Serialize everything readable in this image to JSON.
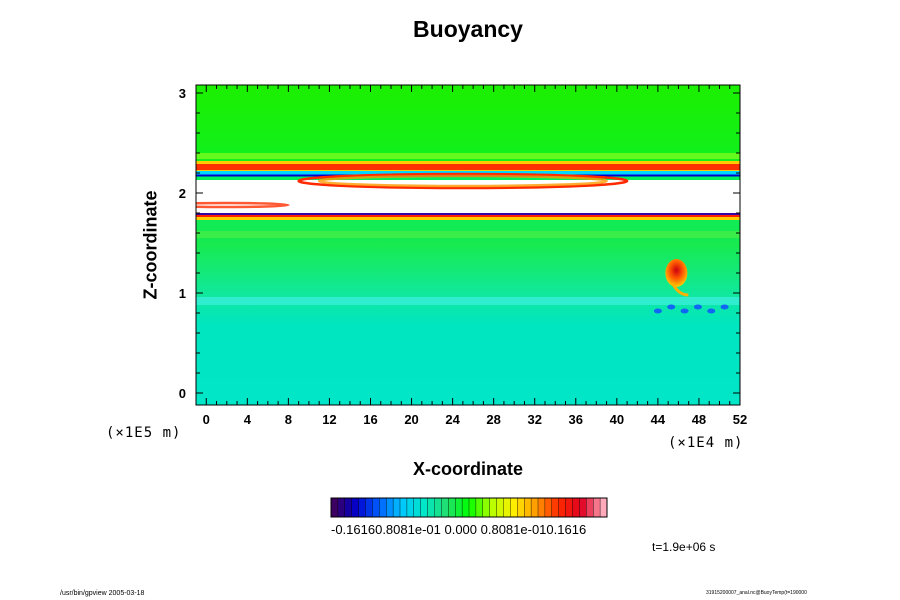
{
  "chart_data": {
    "type": "heatmap",
    "title": "Buoyancy",
    "xlabel": "X-coordinate",
    "ylabel": "Z-coordinate",
    "x_unit": "(×1E4 m)",
    "y_unit": "(×1E5 m)",
    "xlim": [
      -1,
      52
    ],
    "ylim": [
      -0.12,
      3.08
    ],
    "x_ticks": [
      "0",
      "4",
      "8",
      "12",
      "16",
      "20",
      "24",
      "28",
      "32",
      "36",
      "40",
      "44",
      "48",
      "52"
    ],
    "y_ticks": [
      "0",
      "1",
      "2",
      "3"
    ],
    "colorbar": {
      "range": [
        -0.1616,
        0.1616
      ],
      "labels_text": "-0.16160.8081e-01 0.000 0.8081e-010.1616",
      "colors": [
        "#3c0060",
        "#0000cc",
        "#0060ff",
        "#00c8ff",
        "#00e6c8",
        "#20e070",
        "#00ff00",
        "#b4ff00",
        "#ffee00",
        "#ff9900",
        "#ff2a00",
        "#e00020",
        "#ffaabb"
      ]
    },
    "features": [
      {
        "name": "upper green layer",
        "z_range": [
          2.35,
          3.08
        ],
        "value": 0.0
      },
      {
        "name": "upper red band",
        "z_range": [
          2.22,
          2.32
        ],
        "value": 0.12
      },
      {
        "name": "blue line",
        "z_range": [
          2.17,
          2.2
        ],
        "value": -0.12
      },
      {
        "name": "white saturated layer",
        "z_range": [
          1.8,
          2.12
        ],
        "value": 0.1616
      },
      {
        "name": "lower red band",
        "z_range": [
          1.76,
          1.8
        ],
        "value": 0.14
      },
      {
        "name": "mid green region",
        "z_range": [
          0.95,
          1.72
        ],
        "value": 0.01
      },
      {
        "name": "lower cyan region",
        "z_range": [
          -0.12,
          0.95
        ],
        "value": -0.025
      },
      {
        "name": "red thermal plume",
        "x": 45.8,
        "z": 1.2,
        "value": 0.14
      }
    ],
    "time_label": "t=1.9e+06 s"
  },
  "footer": {
    "left": "/usr/bin/gpview 2005-03-18",
    "right": "31915200007_anal.nc@BuoyTemp(t=190000"
  }
}
